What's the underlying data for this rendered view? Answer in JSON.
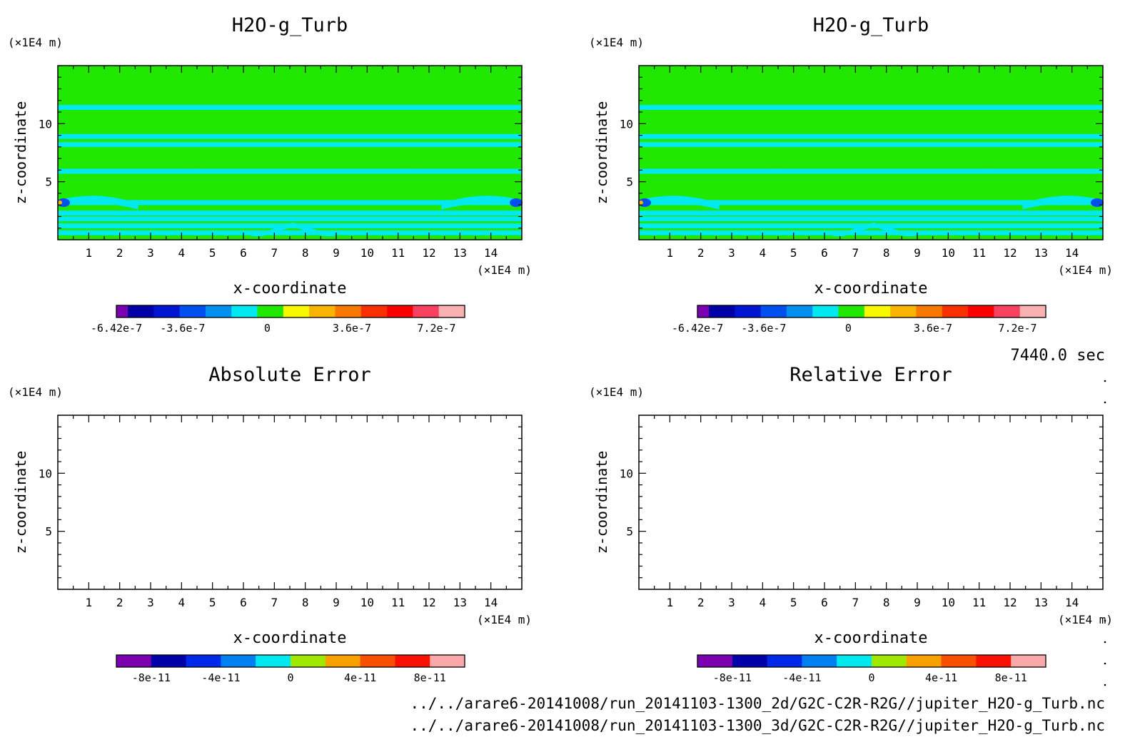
{
  "chart_data": [
    {
      "type": "heatmap",
      "title": "H2O-g_Turb",
      "xlabel": "x-coordinate",
      "ylabel": "z-coordinate",
      "x_unit": "(×1E4 m)",
      "y_unit": "(×1E4 m)",
      "xlim": [
        0,
        15
      ],
      "ylim": [
        0,
        15
      ],
      "x_ticks": [
        "1",
        "2",
        "3",
        "4",
        "5",
        "6",
        "7",
        "8",
        "9",
        "10",
        "11",
        "12",
        "13",
        "14"
      ],
      "y_ticks": [
        "5",
        "10"
      ],
      "colorbar": {
        "colors": [
          "#7B00AF",
          "#0000A8",
          "#0014D2",
          "#0050F0",
          "#0090F0",
          "#00E8F0",
          "#20E800",
          "#F8F800",
          "#F8B400",
          "#F87800",
          "#F83000",
          "#F80000",
          "#F84060",
          "#F8B0B0"
        ],
        "tick_labels": [
          "-6.42e-7",
          "-3.6e-7",
          "0",
          "3.6e-7",
          "7.2e-7"
        ],
        "tick_values": [
          -6.42e-07,
          -3.6e-07,
          0,
          3.6e-07,
          7.2e-07
        ],
        "range": [
          -6.42e-07,
          8.4e-07
        ]
      },
      "field": {
        "background": "#20E800",
        "bands": [
          {
            "z": 11.4,
            "value": -1e-08
          },
          {
            "z": 8.9,
            "value": -1e-08
          },
          {
            "z": 8.2,
            "value": -1e-08
          },
          {
            "z": 5.9,
            "value": -1e-08
          },
          {
            "z": 3.2,
            "value": -1e-08
          },
          {
            "z": 2.3,
            "value": -1e-08
          },
          {
            "z": 1.8,
            "value": -1e-08
          },
          {
            "z": 1.2,
            "value": -1e-08
          },
          {
            "z": 0.6,
            "value": -1e-08
          }
        ]
      }
    },
    {
      "type": "heatmap",
      "title": "H2O-g_Turb",
      "xlabel": "x-coordinate",
      "ylabel": "z-coordinate",
      "x_unit": "(×1E4 m)",
      "y_unit": "(×1E4 m)",
      "xlim": [
        0,
        15
      ],
      "ylim": [
        0,
        15
      ],
      "x_ticks": [
        "1",
        "2",
        "3",
        "4",
        "5",
        "6",
        "7",
        "8",
        "9",
        "10",
        "11",
        "12",
        "13",
        "14"
      ],
      "y_ticks": [
        "5",
        "10"
      ],
      "colorbar": {
        "colors": [
          "#7B00AF",
          "#0000A8",
          "#0014D2",
          "#0050F0",
          "#0090F0",
          "#00E8F0",
          "#20E800",
          "#F8F800",
          "#F8B400",
          "#F87800",
          "#F83000",
          "#F80000",
          "#F84060",
          "#F8B0B0"
        ],
        "tick_labels": [
          "-6.42e-7",
          "-3.6e-7",
          "0",
          "3.6e-7",
          "7.2e-7"
        ],
        "tick_values": [
          -6.42e-07,
          -3.6e-07,
          0,
          3.6e-07,
          7.2e-07
        ],
        "range": [
          -6.42e-07,
          8.4e-07
        ]
      },
      "field": {
        "background": "#20E800",
        "bands": [
          {
            "z": 11.4,
            "value": -1e-08
          },
          {
            "z": 8.9,
            "value": -1e-08
          },
          {
            "z": 8.2,
            "value": -1e-08
          },
          {
            "z": 5.9,
            "value": -1e-08
          },
          {
            "z": 3.2,
            "value": -1e-08
          },
          {
            "z": 2.3,
            "value": -1e-08
          },
          {
            "z": 1.8,
            "value": -1e-08
          },
          {
            "z": 1.2,
            "value": -1e-08
          },
          {
            "z": 0.6,
            "value": -1e-08
          }
        ]
      }
    },
    {
      "type": "heatmap",
      "title": "Absolute Error",
      "xlabel": "x-coordinate",
      "ylabel": "z-coordinate",
      "x_unit": "(×1E4 m)",
      "y_unit": "(×1E4 m)",
      "xlim": [
        0,
        15
      ],
      "ylim": [
        0,
        15
      ],
      "x_ticks": [
        "1",
        "2",
        "3",
        "4",
        "5",
        "6",
        "7",
        "8",
        "9",
        "10",
        "11",
        "12",
        "13",
        "14"
      ],
      "y_ticks": [
        "5",
        "10"
      ],
      "colorbar": {
        "colors": [
          "#7B00AF",
          "#0000A8",
          "#0028E8",
          "#0080F0",
          "#00E8F0",
          "#A0E800",
          "#F8A000",
          "#F85000",
          "#F81000",
          "#F8A8A8"
        ],
        "tick_labels": [
          "-8e-11",
          "-4e-11",
          "0",
          "4e-11",
          "8e-11"
        ],
        "tick_values": [
          -8e-11,
          -4e-11,
          0,
          4e-11,
          8e-11
        ],
        "range": [
          -1e-10,
          1e-10
        ]
      },
      "field": null
    },
    {
      "type": "heatmap",
      "title": "Relative Error",
      "xlabel": "x-coordinate",
      "ylabel": "z-coordinate",
      "x_unit": "(×1E4 m)",
      "y_unit": "(×1E4 m)",
      "xlim": [
        0,
        15
      ],
      "ylim": [
        0,
        15
      ],
      "x_ticks": [
        "1",
        "2",
        "3",
        "4",
        "5",
        "6",
        "7",
        "8",
        "9",
        "10",
        "11",
        "12",
        "13",
        "14"
      ],
      "y_ticks": [
        "5",
        "10"
      ],
      "colorbar": {
        "colors": [
          "#7B00AF",
          "#0000A8",
          "#0028E8",
          "#0080F0",
          "#00E8F0",
          "#A0E800",
          "#F8A000",
          "#F85000",
          "#F81000",
          "#F8A8A8"
        ],
        "tick_labels": [
          "-8e-11",
          "-4e-11",
          "0",
          "4e-11",
          "8e-11"
        ],
        "tick_values": [
          -8e-11,
          -4e-11,
          0,
          4e-11,
          8e-11
        ],
        "range": [
          -1e-10,
          1e-10
        ]
      },
      "field": null
    }
  ],
  "time_label": "7440.0 sec",
  "file_paths": [
    "../../arare6-20141008/run_20141103-1300_2d/G2C-C2R-R2G//jupiter_H2O-g_Turb.nc",
    "../../arare6-20141008/run_20141103-1300_3d/G2C-C2R-R2G//jupiter_H2O-g_Turb.nc"
  ]
}
